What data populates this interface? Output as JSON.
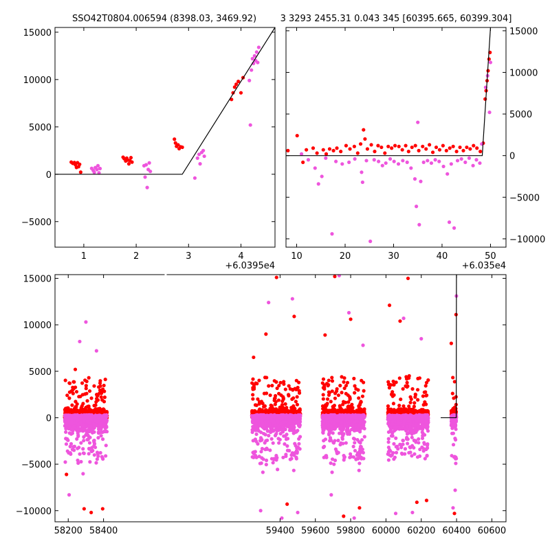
{
  "title_left": "SSO42T0804.006594 (8398.03, 3469.92)",
  "title_right": "3 3293 2455.31 0.043 345 [60395.665, 60399.304]",
  "colors": {
    "red": "#ff0000",
    "pink": "#ee55dd",
    "line": "#000000"
  },
  "chart_data": [
    {
      "type": "scatter",
      "panel": "top-left",
      "offset_label": "+6.0395e4",
      "xlim": [
        0.45,
        4.65
      ],
      "ylim": [
        -7700,
        15500
      ],
      "xticks": [
        1,
        2,
        3,
        4
      ],
      "yticks": [
        -5000,
        0,
        5000,
        10000,
        15000
      ],
      "ytick_labels": [
        "−5000",
        "0",
        "5000",
        "10000",
        "15000"
      ],
      "model_line": [
        [
          0.45,
          0
        ],
        [
          2.88,
          0
        ],
        [
          4.65,
          15500
        ]
      ],
      "series": [
        {
          "color": "red",
          "points": [
            [
              0.76,
              1280
            ],
            [
              0.79,
              1150
            ],
            [
              0.82,
              1240
            ],
            [
              0.84,
              1000
            ],
            [
              0.86,
              720
            ],
            [
              0.88,
              1220
            ],
            [
              0.9,
              800
            ],
            [
              0.92,
              1050
            ],
            [
              0.94,
              220
            ],
            [
              1.75,
              1800
            ],
            [
              1.77,
              1650
            ],
            [
              1.8,
              1400
            ],
            [
              1.82,
              1700
            ],
            [
              1.84,
              1500
            ],
            [
              1.86,
              1100
            ],
            [
              1.88,
              1450
            ],
            [
              1.9,
              1750
            ],
            [
              1.92,
              1280
            ],
            [
              2.73,
              3700
            ],
            [
              2.75,
              3300
            ],
            [
              2.77,
              2950
            ],
            [
              2.8,
              3100
            ],
            [
              2.82,
              2700
            ],
            [
              2.85,
              2900
            ],
            [
              2.88,
              2850
            ],
            [
              3.82,
              7900
            ],
            [
              3.85,
              8600
            ],
            [
              3.88,
              9200
            ],
            [
              3.91,
              9500
            ],
            [
              3.95,
              9800
            ],
            [
              4.0,
              8600
            ],
            [
              4.04,
              10200
            ]
          ]
        },
        {
          "color": "pink",
          "points": [
            [
              1.15,
              620
            ],
            [
              1.18,
              400
            ],
            [
              1.2,
              200
            ],
            [
              1.22,
              700
            ],
            [
              1.25,
              500
            ],
            [
              1.27,
              900
            ],
            [
              1.29,
              150
            ],
            [
              1.31,
              600
            ],
            [
              2.15,
              900
            ],
            [
              2.17,
              -300
            ],
            [
              2.19,
              1000
            ],
            [
              2.21,
              -1400
            ],
            [
              2.23,
              500
            ],
            [
              2.25,
              1200
            ],
            [
              2.27,
              300
            ],
            [
              3.12,
              -400
            ],
            [
              3.17,
              1700
            ],
            [
              3.2,
              2100
            ],
            [
              3.22,
              1100
            ],
            [
              3.25,
              2300
            ],
            [
              3.28,
              2500
            ],
            [
              3.3,
              1900
            ],
            [
              4.16,
              9900
            ],
            [
              4.18,
              5200
            ],
            [
              4.2,
              11000
            ],
            [
              4.22,
              12200
            ],
            [
              4.24,
              11700
            ],
            [
              4.26,
              12500
            ],
            [
              4.28,
              12000
            ],
            [
              4.3,
              12900
            ],
            [
              4.32,
              11800
            ],
            [
              4.34,
              13400
            ]
          ]
        }
      ]
    },
    {
      "type": "scatter",
      "panel": "top-right",
      "offset_label": "+6.035e4",
      "xlim": [
        7.8,
        53.2
      ],
      "ylim": [
        -11000,
        15400
      ],
      "xticks": [
        10,
        20,
        30,
        40,
        50
      ],
      "yticks": [
        -10000,
        -5000,
        0,
        5000,
        10000,
        15000
      ],
      "ytick_labels": [
        "−10000",
        "−5000",
        "0",
        "5000",
        "10000",
        "15000"
      ],
      "model_line": [
        [
          7.8,
          0
        ],
        [
          48.3,
          0
        ],
        [
          50.0,
          15400
        ]
      ],
      "series": [
        {
          "color": "red",
          "points": [
            [
              8.2,
              600
            ],
            [
              10.1,
              2400
            ],
            [
              11.3,
              -800
            ],
            [
              12.0,
              700
            ],
            [
              13.4,
              900
            ],
            [
              14.2,
              300
            ],
            [
              15.5,
              700
            ],
            [
              16.1,
              200
            ],
            [
              16.8,
              800
            ],
            [
              17.6,
              600
            ],
            [
              18.3,
              900
            ],
            [
              19.1,
              500
            ],
            [
              20.2,
              1200
            ],
            [
              21.0,
              800
            ],
            [
              21.9,
              1100
            ],
            [
              22.6,
              300
            ],
            [
              23.2,
              1400
            ],
            [
              23.8,
              3100
            ],
            [
              24.1,
              2000
            ],
            [
              24.6,
              800
            ],
            [
              25.4,
              1300
            ],
            [
              26.1,
              500
            ],
            [
              26.8,
              1200
            ],
            [
              27.5,
              1000
            ],
            [
              28.2,
              300
            ],
            [
              28.9,
              1100
            ],
            [
              29.6,
              900
            ],
            [
              30.3,
              1200
            ],
            [
              31.1,
              1100
            ],
            [
              31.8,
              700
            ],
            [
              32.5,
              1200
            ],
            [
              33.1,
              500
            ],
            [
              33.8,
              1000
            ],
            [
              34.5,
              1200
            ],
            [
              35.2,
              600
            ],
            [
              36.0,
              1100
            ],
            [
              36.7,
              800
            ],
            [
              37.4,
              1300
            ],
            [
              38.1,
              400
            ],
            [
              38.8,
              1000
            ],
            [
              39.5,
              700
            ],
            [
              40.2,
              1200
            ],
            [
              40.9,
              600
            ],
            [
              41.6,
              900
            ],
            [
              42.3,
              1100
            ],
            [
              43.0,
              500
            ],
            [
              43.7,
              1000
            ],
            [
              44.4,
              600
            ],
            [
              45.1,
              1000
            ],
            [
              45.8,
              800
            ],
            [
              46.5,
              1200
            ],
            [
              47.2,
              900
            ],
            [
              47.9,
              500
            ],
            [
              48.5,
              1500
            ],
            [
              48.9,
              6800
            ],
            [
              49.1,
              7800
            ],
            [
              49.3,
              9000
            ],
            [
              49.5,
              10200
            ],
            [
              49.7,
              11600
            ],
            [
              49.9,
              12400
            ]
          ]
        },
        {
          "color": "pink",
          "points": [
            [
              11.0,
              200
            ],
            [
              12.4,
              -500
            ],
            [
              13.8,
              -1500
            ],
            [
              14.5,
              -3400
            ],
            [
              15.2,
              -2500
            ],
            [
              16.0,
              -300
            ],
            [
              17.3,
              -9400
            ],
            [
              18.1,
              -700
            ],
            [
              19.4,
              -1000
            ],
            [
              20.8,
              -800
            ],
            [
              22.0,
              -400
            ],
            [
              23.4,
              -2000
            ],
            [
              23.6,
              -3200
            ],
            [
              24.4,
              -600
            ],
            [
              25.2,
              -10300
            ],
            [
              26.0,
              -500
            ],
            [
              26.9,
              -700
            ],
            [
              27.7,
              -1200
            ],
            [
              28.4,
              -900
            ],
            [
              29.3,
              -400
            ],
            [
              30.1,
              -700
            ],
            [
              31.0,
              -1000
            ],
            [
              31.9,
              -600
            ],
            [
              32.8,
              -800
            ],
            [
              33.6,
              -1500
            ],
            [
              34.4,
              -2800
            ],
            [
              34.7,
              -6100
            ],
            [
              35.0,
              4000
            ],
            [
              35.3,
              -8300
            ],
            [
              35.6,
              -3100
            ],
            [
              36.2,
              -800
            ],
            [
              37.0,
              -600
            ],
            [
              37.8,
              -900
            ],
            [
              38.6,
              -500
            ],
            [
              39.4,
              -700
            ],
            [
              40.3,
              -1300
            ],
            [
              41.1,
              -2200
            ],
            [
              41.5,
              -8000
            ],
            [
              41.9,
              -1000
            ],
            [
              42.5,
              -8700
            ],
            [
              43.2,
              -600
            ],
            [
              44.0,
              -400
            ],
            [
              44.8,
              -800
            ],
            [
              45.6,
              -300
            ],
            [
              46.4,
              -1200
            ],
            [
              47.1,
              -500
            ],
            [
              47.8,
              -900
            ],
            [
              48.2,
              1400
            ],
            [
              49.0,
              8200
            ],
            [
              49.4,
              9600
            ],
            [
              49.8,
              5200
            ],
            [
              50.0,
              11200
            ]
          ]
        }
      ]
    },
    {
      "type": "scatter",
      "panel": "bottom",
      "xlim": [
        58125,
        60680
      ],
      "ylim": [
        -11200,
        15400
      ],
      "xticks": [
        58200,
        58400,
        59400,
        59600,
        59800,
        60000,
        60200,
        60400,
        60600
      ],
      "yticks": [
        -10000,
        -5000,
        0,
        5000,
        10000,
        15000
      ],
      "ytick_labels": [
        "−10000",
        "−5000",
        "0",
        "5000",
        "10000",
        "15000"
      ],
      "axis_breaks": [
        [
          58450,
          59050,
          58450,
          59220
        ]
      ],
      "model_line": [
        [
          60310,
          0
        ],
        [
          60398,
          0
        ],
        [
          60399.3,
          15400
        ]
      ],
      "seasons": [
        {
          "start": 58180,
          "end": 58420,
          "outliers": [
            [
              58190,
              -6100
            ],
            [
              58205,
              -8300
            ],
            [
              58240,
              5200
            ],
            [
              58265,
              8200
            ],
            [
              58290,
              -9800
            ],
            [
              58300,
              10300
            ],
            [
              58330,
              -10200
            ],
            [
              58360,
              7200
            ],
            [
              58395,
              -9800
            ]
          ]
        },
        {
          "start": 59240,
          "end": 59515,
          "outliers": [
            [
              59250,
              6500
            ],
            [
              59290,
              -10000
            ],
            [
              59320,
              9000
            ],
            [
              59335,
              12400
            ],
            [
              59380,
              15100
            ],
            [
              59410,
              -10800
            ],
            [
              59440,
              -9300
            ],
            [
              59470,
              12800
            ],
            [
              59480,
              10900
            ],
            [
              59500,
              -10200
            ]
          ]
        },
        {
          "start": 59640,
          "end": 59880,
          "outliers": [
            [
              59655,
              8900
            ],
            [
              59690,
              -8300
            ],
            [
              59710,
              15200
            ],
            [
              59735,
              15300
            ],
            [
              59760,
              -10600
            ],
            [
              59790,
              11300
            ],
            [
              59800,
              10600
            ],
            [
              59820,
              -10800
            ],
            [
              59850,
              -9700
            ],
            [
              59870,
              7800
            ]
          ]
        },
        {
          "start": 60010,
          "end": 60240,
          "outliers": [
            [
              60020,
              12100
            ],
            [
              60055,
              -10300
            ],
            [
              60080,
              10400
            ],
            [
              60100,
              10700
            ],
            [
              60125,
              15000
            ],
            [
              60150,
              -10200
            ],
            [
              60175,
              -9100
            ],
            [
              60200,
              8500
            ],
            [
              60230,
              -8900
            ]
          ]
        },
        {
          "start": 60370,
          "end": 60399,
          "outliers": [
            [
              60370,
              8000
            ],
            [
              60380,
              -9700
            ],
            [
              60388,
              -10300
            ],
            [
              60392,
              -7800
            ],
            [
              60397,
              11100
            ],
            [
              60399,
              13100
            ]
          ]
        }
      ]
    }
  ]
}
